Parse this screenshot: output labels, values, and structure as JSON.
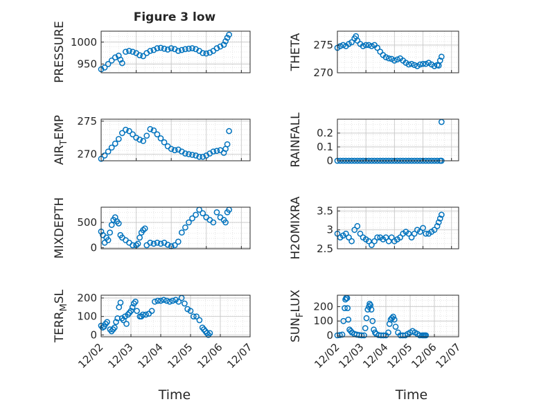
{
  "figure": {
    "title": "Figure 3 low",
    "xlabel": "Time"
  },
  "colors": {
    "marker": "#0072BD",
    "axis": "#262626",
    "grid": "#c8c8c8",
    "minor_grid": "#dedede"
  },
  "chart_data": [
    {
      "type": "scatter",
      "id": "pressure",
      "ylabel": "PRESSURE",
      "ylim": [
        930,
        1025
      ],
      "yticks": [
        950,
        1000
      ],
      "ytick_labels": [
        "950",
        "1000"
      ],
      "xlim": [
        0,
        4.25
      ],
      "show_xticklabels": false,
      "x": [
        0.0,
        0.1,
        0.2,
        0.3,
        0.4,
        0.5,
        0.55,
        0.6,
        0.7,
        0.8,
        0.9,
        1.0,
        1.1,
        1.2,
        1.3,
        1.4,
        1.5,
        1.6,
        1.7,
        1.8,
        1.9,
        2.0,
        2.1,
        2.2,
        2.3,
        2.4,
        2.5,
        2.6,
        2.7,
        2.8,
        2.9,
        3.0,
        3.1,
        3.2,
        3.3,
        3.4,
        3.5,
        3.55,
        3.6,
        3.65
      ],
      "y": [
        938,
        942,
        950,
        958,
        965,
        969,
        960,
        952,
        978,
        980,
        978,
        975,
        970,
        968,
        975,
        980,
        982,
        986,
        987,
        985,
        983,
        986,
        984,
        980,
        982,
        984,
        985,
        986,
        984,
        980,
        975,
        974,
        976,
        980,
        986,
        990,
        994,
        1002,
        1010,
        1017
      ]
    },
    {
      "type": "scatter",
      "id": "theta",
      "ylabel": "THETA",
      "ylim": [
        270,
        277.5
      ],
      "yticks": [
        270,
        275
      ],
      "ytick_labels": [
        "270",
        "275"
      ],
      "xlim": [
        0,
        4.25
      ],
      "show_xticklabels": false,
      "x": [
        0.0,
        0.1,
        0.2,
        0.3,
        0.4,
        0.5,
        0.6,
        0.65,
        0.7,
        0.8,
        0.9,
        1.0,
        1.1,
        1.2,
        1.3,
        1.4,
        1.5,
        1.6,
        1.7,
        1.8,
        1.9,
        2.0,
        2.1,
        2.2,
        2.3,
        2.4,
        2.5,
        2.6,
        2.7,
        2.8,
        2.9,
        3.0,
        3.1,
        3.2,
        3.3,
        3.4,
        3.5,
        3.55,
        3.6,
        3.65
      ],
      "y": [
        274.5,
        274.8,
        275.0,
        274.8,
        275.2,
        275.5,
        276.2,
        276.6,
        275.8,
        275.2,
        274.8,
        275.0,
        275.0,
        274.8,
        275.0,
        274.5,
        273.8,
        273.2,
        272.8,
        272.6,
        272.5,
        272.2,
        272.4,
        272.6,
        272.2,
        271.8,
        271.5,
        271.6,
        271.4,
        271.2,
        271.5,
        271.6,
        271.6,
        271.8,
        271.5,
        271.2,
        271.4,
        271.3,
        272.2,
        272.9
      ]
    },
    {
      "type": "scatter",
      "id": "air_temp",
      "ylabel": "AIR_TEMP",
      "ylim": [
        269,
        275.3
      ],
      "yticks": [
        270,
        275
      ],
      "ytick_labels": [
        "270",
        "275"
      ],
      "xlim": [
        0,
        4.25
      ],
      "show_xticklabels": false,
      "x": [
        0.0,
        0.1,
        0.2,
        0.3,
        0.4,
        0.5,
        0.6,
        0.7,
        0.8,
        0.9,
        1.0,
        1.1,
        1.2,
        1.3,
        1.4,
        1.5,
        1.6,
        1.7,
        1.8,
        1.9,
        2.0,
        2.1,
        2.2,
        2.3,
        2.4,
        2.5,
        2.6,
        2.7,
        2.8,
        2.9,
        3.0,
        3.1,
        3.2,
        3.3,
        3.4,
        3.5,
        3.55,
        3.6,
        3.65
      ],
      "y": [
        269.3,
        269.8,
        270.4,
        271.0,
        271.6,
        272.3,
        273.2,
        273.7,
        273.5,
        273.0,
        272.5,
        272.2,
        272.0,
        272.8,
        273.8,
        273.6,
        273.0,
        272.4,
        271.8,
        271.2,
        270.8,
        270.6,
        270.7,
        270.4,
        270.1,
        270.0,
        269.9,
        269.8,
        269.6,
        269.6,
        269.8,
        270.1,
        270.4,
        270.5,
        270.6,
        270.2,
        270.8,
        271.5,
        273.5
      ]
    },
    {
      "type": "scatter",
      "id": "rainfall",
      "ylabel": "RAINFALL",
      "ylim": [
        0,
        0.3
      ],
      "yticks": [
        0,
        0.1,
        0.2
      ],
      "ytick_labels": [
        "0",
        "0.1",
        "0.2"
      ],
      "xlim": [
        0,
        4.25
      ],
      "show_xticklabels": false,
      "x": [
        0.0,
        0.1,
        0.2,
        0.3,
        0.4,
        0.5,
        0.6,
        0.7,
        0.8,
        0.9,
        1.0,
        1.1,
        1.2,
        1.3,
        1.4,
        1.5,
        1.6,
        1.7,
        1.8,
        1.9,
        2.0,
        2.1,
        2.2,
        2.3,
        2.4,
        2.5,
        2.6,
        2.7,
        2.8,
        2.9,
        3.0,
        3.1,
        3.2,
        3.3,
        3.4,
        3.5,
        3.6,
        3.65,
        3.65
      ],
      "y": [
        0,
        0,
        0,
        0,
        0,
        0,
        0,
        0,
        0,
        0,
        0,
        0,
        0,
        0,
        0,
        0,
        0,
        0,
        0,
        0,
        0,
        0,
        0,
        0,
        0,
        0,
        0,
        0,
        0,
        0,
        0,
        0,
        0,
        0,
        0,
        0,
        0,
        0,
        0.28
      ]
    },
    {
      "type": "scatter",
      "id": "mixdepth",
      "ylabel": "MIXDEPTH",
      "ylim": [
        -20,
        800
      ],
      "yticks": [
        0,
        500
      ],
      "ytick_labels": [
        "0",
        "500"
      ],
      "xlim": [
        0,
        4.25
      ],
      "show_xticklabels": false,
      "x": [
        0.0,
        0.05,
        0.1,
        0.15,
        0.2,
        0.25,
        0.3,
        0.35,
        0.4,
        0.45,
        0.5,
        0.55,
        0.6,
        0.7,
        0.8,
        0.9,
        1.0,
        1.05,
        1.1,
        1.15,
        1.2,
        1.25,
        1.3,
        1.4,
        1.5,
        1.6,
        1.7,
        1.8,
        1.9,
        2.0,
        2.1,
        2.2,
        2.3,
        2.4,
        2.5,
        2.6,
        2.7,
        2.8,
        2.9,
        3.0,
        3.1,
        3.2,
        3.3,
        3.4,
        3.5,
        3.55,
        3.6,
        3.65
      ],
      "y": [
        320,
        250,
        100,
        200,
        150,
        300,
        450,
        550,
        600,
        520,
        480,
        250,
        200,
        150,
        100,
        50,
        50,
        80,
        200,
        300,
        350,
        380,
        50,
        100,
        80,
        100,
        80,
        100,
        60,
        30,
        50,
        120,
        300,
        400,
        500,
        580,
        650,
        750,
        680,
        600,
        550,
        500,
        700,
        600,
        550,
        500,
        700,
        750
      ]
    },
    {
      "type": "scatter",
      "id": "h2omixra",
      "ylabel": "H2OMIXRA",
      "ylim": [
        2.5,
        3.6
      ],
      "yticks": [
        2.5,
        3,
        3.5
      ],
      "ytick_labels": [
        "2.5",
        "3",
        "3.5"
      ],
      "xlim": [
        0,
        4.25
      ],
      "show_xticklabels": false,
      "x": [
        0.0,
        0.1,
        0.2,
        0.3,
        0.4,
        0.5,
        0.6,
        0.7,
        0.8,
        0.9,
        1.0,
        1.1,
        1.2,
        1.3,
        1.4,
        1.5,
        1.6,
        1.7,
        1.8,
        1.9,
        2.0,
        2.1,
        2.2,
        2.3,
        2.4,
        2.5,
        2.6,
        2.7,
        2.8,
        2.9,
        3.0,
        3.1,
        3.2,
        3.3,
        3.4,
        3.5,
        3.55,
        3.6,
        3.65
      ],
      "y": [
        2.9,
        2.8,
        2.85,
        2.9,
        2.8,
        2.7,
        3.0,
        3.1,
        2.9,
        2.8,
        2.75,
        2.7,
        2.6,
        2.7,
        2.8,
        2.8,
        2.75,
        2.8,
        2.7,
        2.8,
        2.7,
        2.75,
        2.8,
        2.9,
        2.95,
        2.9,
        2.8,
        2.9,
        3.0,
        2.95,
        3.05,
        2.9,
        2.9,
        2.95,
        3.0,
        3.1,
        3.2,
        3.3,
        3.4
      ]
    },
    {
      "type": "scatter",
      "id": "terr_msl",
      "ylabel": "TERR_MSL",
      "ylim": [
        -10,
        215
      ],
      "yticks": [
        0,
        100,
        200
      ],
      "ytick_labels": [
        "0",
        "100",
        "200"
      ],
      "xlim": [
        0,
        5.0
      ],
      "show_xticklabels": true,
      "xticks": [
        0,
        1,
        2,
        3,
        4,
        5
      ],
      "xtick_labels": [
        "12/02",
        "12/03",
        "12/04",
        "12/05",
        "12/06",
        "12/07"
      ],
      "x": [
        0.0,
        0.05,
        0.1,
        0.15,
        0.2,
        0.3,
        0.35,
        0.4,
        0.45,
        0.5,
        0.55,
        0.6,
        0.65,
        0.7,
        0.75,
        0.8,
        0.85,
        0.9,
        0.95,
        1.0,
        1.05,
        1.1,
        1.15,
        1.2,
        1.3,
        1.35,
        1.4,
        1.5,
        1.6,
        1.7,
        1.8,
        1.9,
        2.0,
        2.1,
        2.2,
        2.3,
        2.4,
        2.5,
        2.6,
        2.7,
        2.8,
        2.9,
        3.0,
        3.1,
        3.2,
        3.3,
        3.4,
        3.45,
        3.5,
        3.55,
        3.6,
        3.65
      ],
      "y": [
        50,
        40,
        45,
        60,
        70,
        30,
        20,
        30,
        40,
        70,
        90,
        150,
        175,
        90,
        80,
        100,
        60,
        110,
        120,
        130,
        150,
        170,
        180,
        130,
        100,
        100,
        110,
        110,
        115,
        130,
        180,
        185,
        185,
        190,
        185,
        180,
        185,
        190,
        180,
        200,
        170,
        140,
        130,
        100,
        100,
        80,
        40,
        30,
        20,
        10,
        0,
        10
      ]
    },
    {
      "type": "scatter",
      "id": "sun_flux",
      "ylabel": "SUN_FLUX",
      "ylim": [
        -10,
        280
      ],
      "yticks": [
        0,
        100,
        200
      ],
      "ytick_labels": [
        "0",
        "100",
        "200"
      ],
      "xlim": [
        0,
        5.0
      ],
      "show_xticklabels": true,
      "xticks": [
        0,
        1,
        2,
        3,
        4,
        5
      ],
      "xtick_labels": [
        "12/02",
        "12/03",
        "12/04",
        "12/05",
        "12/06",
        "12/07"
      ],
      "x": [
        0.0,
        0.1,
        0.2,
        0.25,
        0.3,
        0.33,
        0.36,
        0.4,
        0.42,
        0.45,
        0.5,
        0.55,
        0.6,
        0.7,
        0.8,
        0.9,
        1.0,
        1.1,
        1.15,
        1.2,
        1.25,
        1.3,
        1.33,
        1.36,
        1.4,
        1.45,
        1.5,
        1.55,
        1.6,
        1.7,
        1.8,
        1.9,
        2.0,
        2.1,
        2.15,
        2.2,
        2.25,
        2.3,
        2.35,
        2.4,
        2.5,
        2.6,
        2.7,
        2.8,
        2.9,
        3.0,
        3.1,
        3.2,
        3.3,
        3.4,
        3.5,
        3.55,
        3.6,
        3.65
      ],
      "y": [
        0,
        2,
        5,
        100,
        190,
        250,
        260,
        260,
        190,
        110,
        40,
        30,
        20,
        10,
        5,
        2,
        0,
        0,
        50,
        120,
        180,
        200,
        220,
        210,
        180,
        100,
        40,
        20,
        10,
        2,
        0,
        0,
        0,
        20,
        80,
        110,
        120,
        130,
        110,
        60,
        20,
        0,
        0,
        0,
        10,
        20,
        30,
        20,
        10,
        0,
        0,
        0,
        0,
        0
      ]
    }
  ]
}
